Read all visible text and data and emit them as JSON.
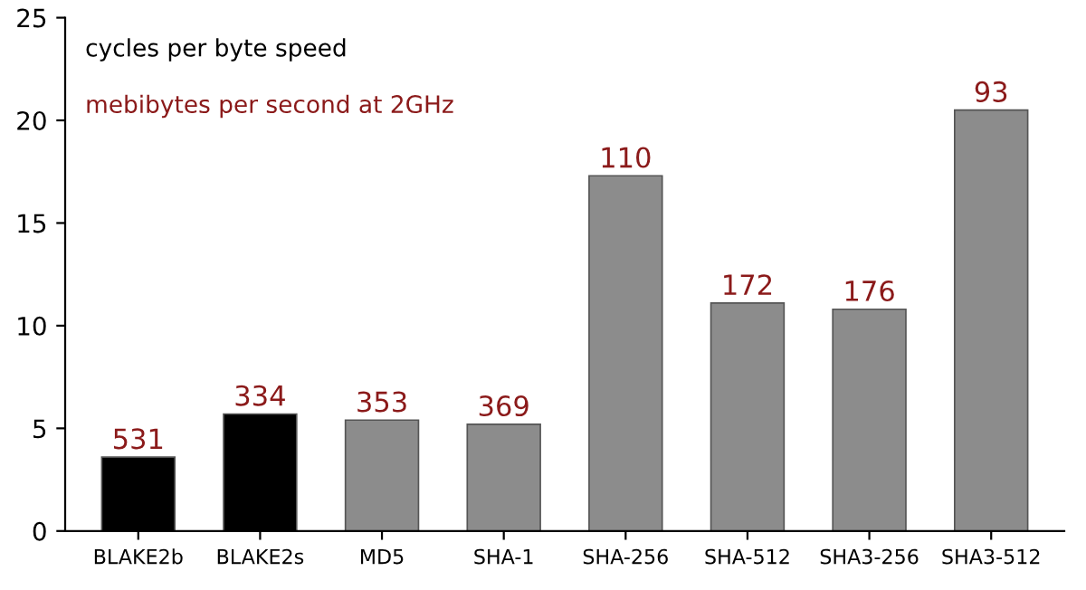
{
  "chart_data": {
    "type": "bar",
    "title": "cycles per byte speed",
    "subtitle": "mebibytes per second at 2GHz",
    "categories": [
      "BLAKE2b",
      "BLAKE2s",
      "MD5",
      "SHA-1",
      "SHA-256",
      "SHA-512",
      "SHA3-256",
      "SHA3-512"
    ],
    "values": [
      3.6,
      5.7,
      5.4,
      5.2,
      17.3,
      11.1,
      10.8,
      20.5
    ],
    "colors": [
      "#000000",
      "#000000",
      "#8c8c8c",
      "#8c8c8c",
      "#8c8c8c",
      "#8c8c8c",
      "#8c8c8c",
      "#8c8c8c"
    ],
    "annotations": [
      {
        "text": "531",
        "x": "BLAKE2b",
        "y": 3.6
      },
      {
        "text": "334",
        "x": "BLAKE2s",
        "y": 5.7
      },
      {
        "text": "353",
        "x": "MD5",
        "y": 5.4
      },
      {
        "text": "369",
        "x": "SHA-1",
        "y": 5.2
      },
      {
        "text": "110",
        "x": "SHA-256",
        "y": 17.3
      },
      {
        "text": "172",
        "x": "SHA-512",
        "y": 11.1
      },
      {
        "text": "176",
        "x": "SHA3-256",
        "y": 10.8
      },
      {
        "text": "93",
        "x": "SHA3-512",
        "y": 20.5
      }
    ],
    "ylim": [
      0,
      25
    ],
    "yticks": [
      0,
      5,
      10,
      15,
      20,
      25
    ],
    "grid": false,
    "legend": false
  }
}
